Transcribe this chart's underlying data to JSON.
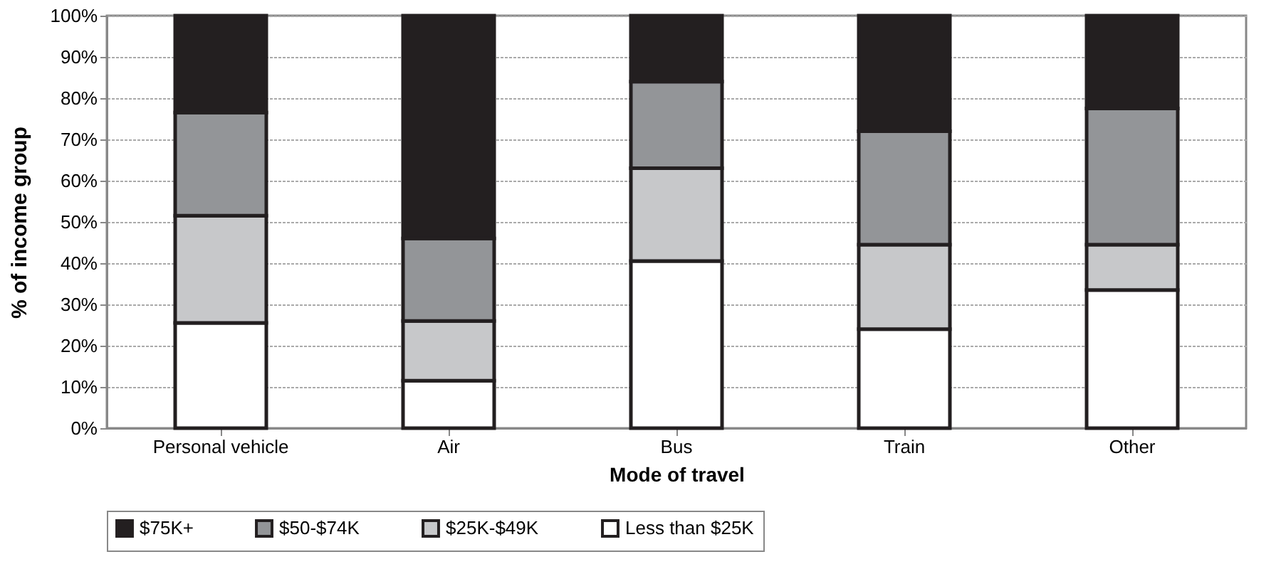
{
  "chart_data": {
    "type": "bar",
    "stacked": true,
    "xlabel": "Mode of travel",
    "ylabel": "% of income group",
    "categories": [
      "Personal vehicle",
      "Air",
      "Bus",
      "Train",
      "Other"
    ],
    "series": [
      {
        "name": "Less than $25K",
        "color": "#ffffff",
        "values": [
          25.5,
          11.5,
          40.5,
          24,
          33.5
        ]
      },
      {
        "name": "$25K-$49K",
        "color": "#c7c8ca",
        "values": [
          26,
          14.5,
          22.5,
          20.5,
          11
        ]
      },
      {
        "name": "$50-$74K",
        "color": "#939598",
        "values": [
          25,
          20,
          21,
          27.5,
          33
        ]
      },
      {
        "name": "$75K+",
        "color": "#231f20",
        "values": [
          23.5,
          54,
          16,
          28,
          22.5
        ]
      }
    ],
    "ylim": [
      0,
      100
    ],
    "yticks": [
      {
        "value": 0,
        "label": "0%"
      },
      {
        "value": 10,
        "label": "10%"
      },
      {
        "value": 20,
        "label": "20%"
      },
      {
        "value": 30,
        "label": "30%"
      },
      {
        "value": 40,
        "label": "40%"
      },
      {
        "value": 50,
        "label": "50%"
      },
      {
        "value": 60,
        "label": "60%"
      },
      {
        "value": 70,
        "label": "70%"
      },
      {
        "value": 80,
        "label": "80%"
      },
      {
        "value": 90,
        "label": "90%"
      },
      {
        "value": 100,
        "label": "100%"
      }
    ],
    "grid": "y",
    "legend": "bottom"
  }
}
